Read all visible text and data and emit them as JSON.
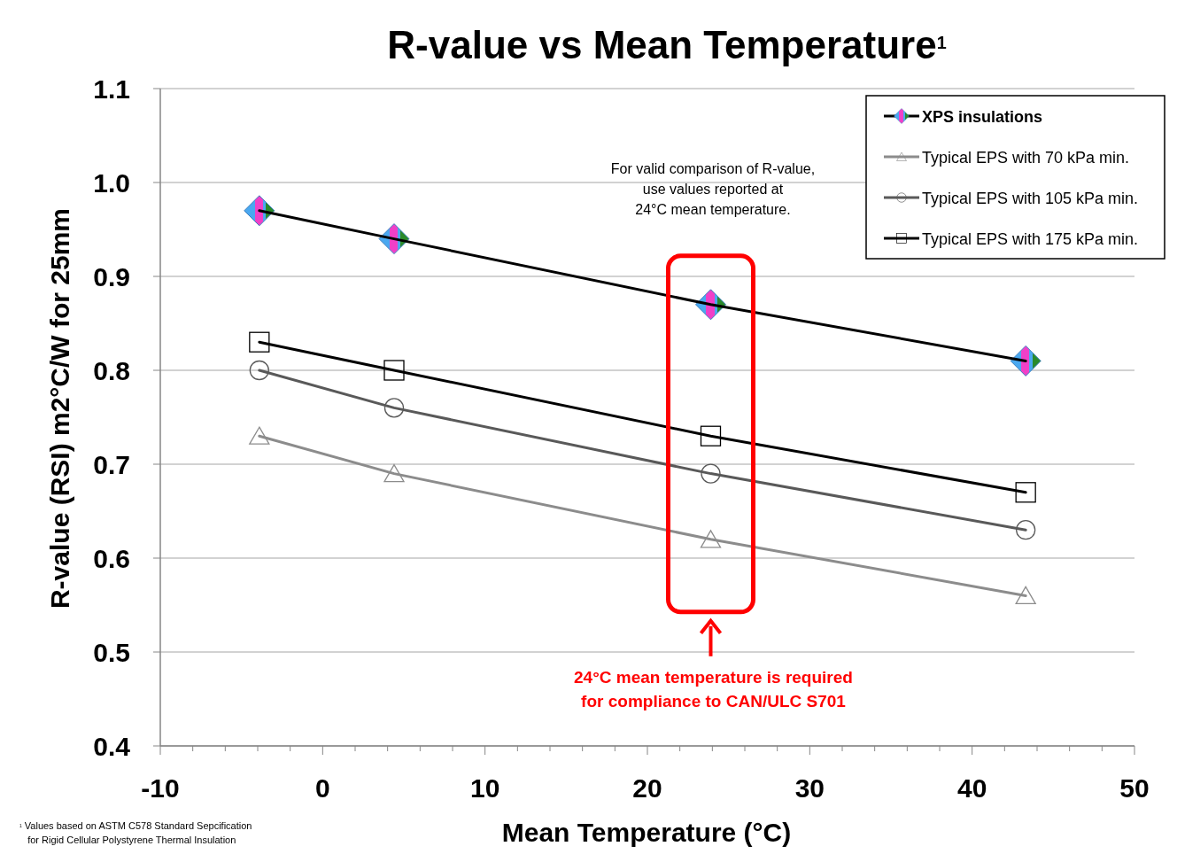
{
  "chart_data": {
    "type": "line",
    "title": "R-value vs Mean Temperature$^{1}$",
    "xlabel": "Mean Temperature (°C)",
    "ylabel": "R-value (RSI)   m2°C/W for 25mm",
    "xlim": [
      -10,
      50
    ],
    "xticks": [
      -10,
      {
        "value": -8,
        "label": null
      },
      {
        "value": -6,
        "label": null
      },
      {
        "value": -4,
        "label": null
      },
      {
        "value": -2,
        "label": null
      },
      0,
      {
        "value": 2,
        "label": null
      },
      {
        "value": 4,
        "label": null
      },
      {
        "value": 6,
        "label": null
      },
      {
        "value": 8,
        "label": null
      },
      10,
      {
        "value": 12,
        "label": null
      },
      {
        "value": 14,
        "label": null
      },
      {
        "value": 16,
        "label": null
      },
      {
        "value": 18,
        "label": null
      },
      20,
      {
        "value": 22,
        "label": null
      },
      {
        "value": 24,
        "label": null
      },
      {
        "value": 26,
        "label": null
      },
      {
        "value": 28,
        "label": null
      },
      30,
      {
        "value": 32,
        "label": null
      },
      {
        "value": 34,
        "label": null
      },
      {
        "value": 36,
        "label": null
      },
      {
        "value": 38,
        "label": null
      },
      40,
      {
        "value": 42,
        "label": null
      },
      {
        "value": 44,
        "label": null
      },
      {
        "value": 46,
        "label": null
      },
      {
        "value": 48,
        "label": null
      },
      50
    ],
    "ylim": [
      0.4,
      1.1
    ],
    "yticks": [
      {
        "value": 0.4,
        "label": "0.4"
      },
      {
        "value": 0.5,
        "label": "0.5"
      },
      {
        "value": 0.6,
        "label": "0.6"
      },
      {
        "value": 0.7,
        "label": "0.7"
      },
      {
        "value": 0.8,
        "label": "0.8"
      },
      {
        "value": 0.9,
        "label": "0.9"
      },
      {
        "value": 1.0,
        "label": "1.0"
      },
      {
        "value": 1.1,
        "label": "1.1"
      }
    ],
    "grid": "y",
    "legend": "top right",
    "line_style": "solid",
    "x": [
      -3.9,
      4.4,
      23.9,
      43.3
    ],
    "series": [
      {
        "name": "XPS insulations",
        "color": "#000000",
        "marker": "diamond",
        "values": [
          0.97,
          0.94,
          0.87,
          0.81
        ]
      },
      {
        "name": "Typical EPS with 70 kPa min.",
        "color": "#8c8c8c",
        "marker": "triangle",
        "values": [
          0.73,
          0.69,
          0.62,
          0.56
        ]
      },
      {
        "name": "Typical EPS with 105 kPa min.",
        "color": "#595959",
        "marker": "circle",
        "values": [
          0.8,
          0.76,
          0.69,
          0.63
        ]
      },
      {
        "name": "Typical EPS with 175 kPa min.",
        "color": "#000000",
        "marker": "square",
        "values": [
          0.83,
          0.8,
          0.73,
          0.67
        ]
      }
    ],
    "annotations": [
      "For valid comparison of R-value,\nuse values reported at\n24°C mean temperature.",
      {
        "text": "24°C mean temperature is required\nfor compliance to CAN/ULC S701",
        "x": 23.9
      },
      "$^{1}$ Values based on ASTM C578 Standard Sepcification\n   for Rigid Cellular Polystyrene Thermal Insulation"
    ]
  }
}
